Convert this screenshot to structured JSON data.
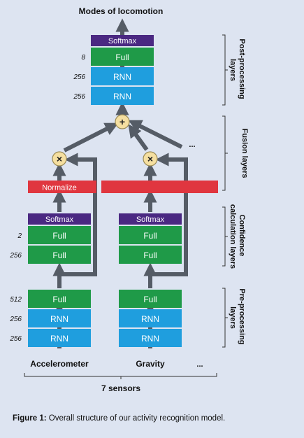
{
  "output_label": "Modes of locomotion",
  "post_processing": {
    "group_label": "Post-processing layers",
    "group_label_lines": [
      "Post-processing",
      "layers"
    ],
    "layers": [
      {
        "label": "Softmax",
        "size": "",
        "color": "#4a2882"
      },
      {
        "label": "Full",
        "size": "8",
        "color": "#1f9a48"
      },
      {
        "label": "RNN",
        "size": "256",
        "color": "#1f9ede"
      },
      {
        "label": "RNN",
        "size": "256",
        "color": "#1f9ede"
      }
    ]
  },
  "fusion": {
    "group_label": "Fusion layers",
    "plus_symbol": "+",
    "times_symbol": "×",
    "ellipsis": "..."
  },
  "normalize": {
    "label": "Normalize",
    "color": "#e0363f"
  },
  "confidence": {
    "group_label": "Confidence calculation layers",
    "group_label_lines": [
      "Confidence",
      "calculation layers"
    ],
    "layers": [
      {
        "label": "Softmax",
        "size": "",
        "color": "#4a2882"
      },
      {
        "label": "Full",
        "size": "2",
        "color": "#1f9a48"
      },
      {
        "label": "Full",
        "size": "256",
        "color": "#1f9a48"
      }
    ]
  },
  "pre_processing": {
    "group_label": "Pre-processing layers",
    "group_label_lines": [
      "Pre-processing",
      "layers"
    ],
    "layers": [
      {
        "label": "Full",
        "size": "512",
        "color": "#1f9a48"
      },
      {
        "label": "RNN",
        "size": "256",
        "color": "#1f9ede"
      },
      {
        "label": "RNN",
        "size": "256",
        "color": "#1f9ede"
      }
    ]
  },
  "sensors": {
    "columns": [
      "Accelerometer",
      "Gravity"
    ],
    "ellipsis": "...",
    "count_label": "7 sensors"
  },
  "caption": {
    "prefix": "Figure 1:",
    "text": " Overall structure of our activity recognition model."
  },
  "colors": {
    "arrow": "#555c66",
    "circle": "#f5dfa0",
    "circle_stroke": "#9a8a55",
    "bracket": "#333333"
  }
}
